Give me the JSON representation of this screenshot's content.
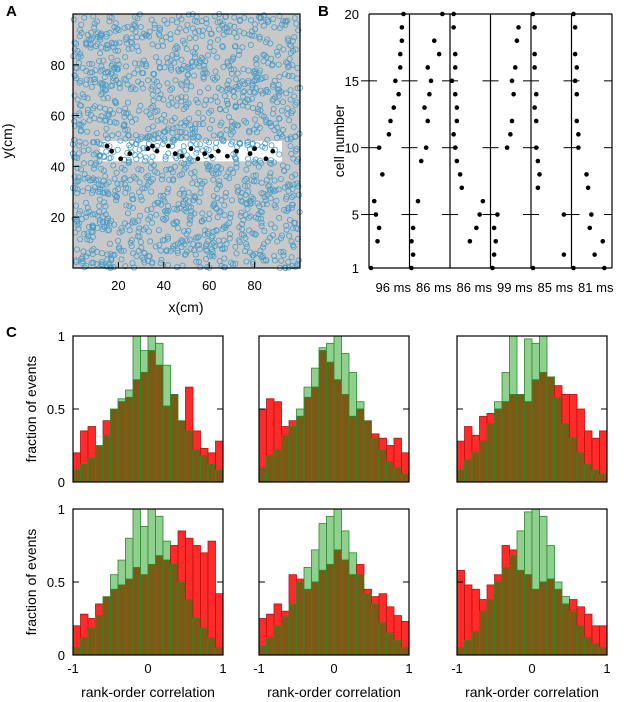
{
  "panel_labels": {
    "a": "A",
    "b": "B",
    "c": "C"
  },
  "colors": {
    "arena_bg": "#c8c8c8",
    "ring": "#4b9cc7",
    "spike": "#000000",
    "green_fill": "#8fd08f",
    "green_edge": "#2a8a2a",
    "red_fill": "#ff2a2a",
    "overlap": "#7a5a14"
  },
  "chart_data": [
    {
      "id": "A",
      "type": "scatter",
      "title": "",
      "xlabel": "x(cm)",
      "ylabel": "y(cm)",
      "xlim": [
        0,
        100
      ],
      "ylim": [
        0,
        100
      ],
      "xticks": [
        20,
        40,
        60,
        80
      ],
      "yticks": [
        20,
        40,
        60,
        80
      ],
      "track_y_range": [
        42,
        50
      ],
      "track_x_range": [
        12,
        92
      ],
      "active_cells": [
        {
          "x": 15,
          "y": 48
        },
        {
          "x": 17,
          "y": 46
        },
        {
          "x": 21,
          "y": 43
        },
        {
          "x": 25,
          "y": 45
        },
        {
          "x": 33,
          "y": 47
        },
        {
          "x": 35,
          "y": 48
        },
        {
          "x": 37,
          "y": 46
        },
        {
          "x": 42,
          "y": 48
        },
        {
          "x": 45,
          "y": 45
        },
        {
          "x": 48,
          "y": 44
        },
        {
          "x": 52,
          "y": 47
        },
        {
          "x": 55,
          "y": 43
        },
        {
          "x": 58,
          "y": 45
        },
        {
          "x": 61,
          "y": 44
        },
        {
          "x": 64,
          "y": 46
        },
        {
          "x": 68,
          "y": 44
        },
        {
          "x": 72,
          "y": 46
        },
        {
          "x": 78,
          "y": 45
        },
        {
          "x": 80,
          "y": 47
        },
        {
          "x": 85,
          "y": 43
        },
        {
          "x": 88,
          "y": 46
        }
      ]
    },
    {
      "id": "B",
      "type": "scatter",
      "ylabel": "cell number",
      "yticks": [
        1,
        5,
        10,
        15,
        20
      ],
      "ylim": [
        1,
        20
      ],
      "events": [
        {
          "label": "96 ms",
          "points": [
            [
              0.0,
              1
            ],
            [
              0.2,
              3
            ],
            [
              0.25,
              4
            ],
            [
              0.15,
              5
            ],
            [
              0.1,
              6
            ],
            [
              0.35,
              8
            ],
            [
              0.25,
              10
            ],
            [
              0.55,
              11
            ],
            [
              0.6,
              12
            ],
            [
              0.7,
              13
            ],
            [
              0.85,
              14
            ],
            [
              0.75,
              15
            ],
            [
              0.9,
              16
            ],
            [
              0.9,
              17
            ],
            [
              0.95,
              18
            ],
            [
              0.95,
              19
            ],
            [
              1.0,
              20
            ]
          ]
        },
        {
          "label": "86 ms",
          "points": [
            [
              0.0,
              1
            ],
            [
              0.05,
              2
            ],
            [
              0.0,
              3
            ],
            [
              0.05,
              4
            ],
            [
              0.2,
              6
            ],
            [
              0.3,
              9
            ],
            [
              0.45,
              10
            ],
            [
              0.5,
              12
            ],
            [
              0.4,
              13
            ],
            [
              0.55,
              14
            ],
            [
              0.6,
              15
            ],
            [
              0.5,
              16
            ],
            [
              0.85,
              17
            ],
            [
              0.7,
              18
            ],
            [
              0.95,
              20
            ]
          ]
        },
        {
          "label": "86 ms",
          "points": [
            [
              0.0,
              15
            ],
            [
              0.05,
              20
            ],
            [
              0.05,
              19
            ],
            [
              0.1,
              17
            ],
            [
              0.1,
              16
            ],
            [
              0.1,
              14
            ],
            [
              0.15,
              13
            ],
            [
              0.15,
              12
            ],
            [
              0.05,
              11
            ],
            [
              0.1,
              10
            ],
            [
              0.15,
              9
            ],
            [
              0.25,
              8
            ],
            [
              0.3,
              7
            ],
            [
              0.55,
              3
            ],
            [
              0.75,
              4
            ],
            [
              0.85,
              5
            ],
            [
              0.95,
              6
            ]
          ]
        },
        {
          "label": "99 ms",
          "points": [
            [
              0.0,
              1
            ],
            [
              0.05,
              2
            ],
            [
              0.1,
              3
            ],
            [
              0.05,
              4
            ],
            [
              0.15,
              5
            ],
            [
              0.45,
              10
            ],
            [
              0.55,
              11
            ],
            [
              0.6,
              12
            ],
            [
              0.65,
              14
            ],
            [
              0.6,
              15
            ],
            [
              0.7,
              16
            ],
            [
              0.75,
              18
            ],
            [
              0.8,
              19
            ]
          ]
        },
        {
          "label": "85 ms",
          "points": [
            [
              0.0,
              1
            ],
            [
              0.0,
              20
            ],
            [
              0.05,
              19
            ],
            [
              0.05,
              17
            ],
            [
              0.05,
              16
            ],
            [
              0.1,
              14
            ],
            [
              0.05,
              13
            ],
            [
              0.1,
              12
            ],
            [
              0.1,
              10
            ],
            [
              0.15,
              9
            ],
            [
              0.2,
              8
            ],
            [
              0.15,
              7
            ],
            [
              0.95,
              2
            ],
            [
              0.95,
              5
            ]
          ]
        },
        {
          "label": "81 ms",
          "points": [
            [
              0.0,
              1
            ],
            [
              0.0,
              20
            ],
            [
              0.05,
              19
            ],
            [
              0.05,
              17
            ],
            [
              0.1,
              16
            ],
            [
              0.05,
              15
            ],
            [
              0.1,
              14
            ],
            [
              0.1,
              12
            ],
            [
              0.15,
              11
            ],
            [
              0.15,
              10
            ],
            [
              0.4,
              8
            ],
            [
              0.45,
              7
            ],
            [
              0.55,
              5
            ],
            [
              0.5,
              4
            ],
            [
              0.65,
              2
            ],
            [
              0.9,
              3
            ],
            [
              0.95,
              1
            ]
          ]
        }
      ]
    },
    {
      "id": "C",
      "type": "bar",
      "xlabel": "rank-order correlation",
      "ylabel": "fraction of events",
      "xlim": [
        -1,
        1
      ],
      "ylim": [
        0,
        1
      ],
      "xticks": [
        -1,
        0,
        1
      ],
      "yticks": [
        0,
        0.5,
        1
      ],
      "bin_edges_from": -1,
      "bin_width": 0.1,
      "panels": [
        {
          "red": [
            0.2,
            0.35,
            0.38,
            0.25,
            0.42,
            0.5,
            0.55,
            0.58,
            0.7,
            0.75,
            0.9,
            0.8,
            0.52,
            0.6,
            0.42,
            0.65,
            0.35,
            0.23,
            0.2,
            0.28
          ],
          "green": [
            0.08,
            0.12,
            0.16,
            0.25,
            0.32,
            0.5,
            0.57,
            0.63,
            1.0,
            0.9,
            1.0,
            0.95,
            0.8,
            0.6,
            0.42,
            0.35,
            0.22,
            0.18,
            0.12,
            0.08
          ]
        },
        {
          "red": [
            0.5,
            0.57,
            0.55,
            0.38,
            0.42,
            0.45,
            0.58,
            0.65,
            0.9,
            0.82,
            0.7,
            0.6,
            0.45,
            0.5,
            0.42,
            0.33,
            0.3,
            0.25,
            0.3,
            0.2
          ],
          "green": [
            0.1,
            0.18,
            0.22,
            0.32,
            0.38,
            0.5,
            0.65,
            0.78,
            0.92,
            0.95,
            1.0,
            0.88,
            0.75,
            0.55,
            0.42,
            0.3,
            0.22,
            0.14,
            0.1,
            0.05
          ]
        },
        {
          "red": [
            0.28,
            0.38,
            0.32,
            0.45,
            0.47,
            0.5,
            0.55,
            0.6,
            0.6,
            0.55,
            0.7,
            0.75,
            0.72,
            0.66,
            0.6,
            0.6,
            0.5,
            0.35,
            0.3,
            0.35
          ],
          "green": [
            0.08,
            0.15,
            0.2,
            0.28,
            0.4,
            0.55,
            0.75,
            1.0,
            0.6,
            0.98,
            0.95,
            1.0,
            0.72,
            0.58,
            0.4,
            0.3,
            0.2,
            0.12,
            0.08,
            0.05
          ]
        },
        {
          "red": [
            0.2,
            0.28,
            0.25,
            0.35,
            0.4,
            0.45,
            0.48,
            0.52,
            0.6,
            0.55,
            0.62,
            0.68,
            0.65,
            0.75,
            0.85,
            0.8,
            0.75,
            0.7,
            0.78,
            0.42
          ],
          "green": [
            0.05,
            0.12,
            0.18,
            0.27,
            0.4,
            0.55,
            0.65,
            0.8,
            1.0,
            0.88,
            1.0,
            0.95,
            0.78,
            0.62,
            0.5,
            0.38,
            0.25,
            0.18,
            0.12,
            0.05
          ]
        },
        {
          "red": [
            0.25,
            0.28,
            0.35,
            0.3,
            0.55,
            0.52,
            0.45,
            0.5,
            0.58,
            0.62,
            0.72,
            0.65,
            0.55,
            0.62,
            0.45,
            0.4,
            0.42,
            0.33,
            0.27,
            0.23
          ],
          "green": [
            0.06,
            0.12,
            0.2,
            0.26,
            0.35,
            0.5,
            0.6,
            0.72,
            0.9,
            0.95,
            1.0,
            0.85,
            0.7,
            0.55,
            0.42,
            0.35,
            0.22,
            0.15,
            0.1,
            0.05
          ]
        },
        {
          "red": [
            0.58,
            0.48,
            0.45,
            0.38,
            0.48,
            0.55,
            0.75,
            0.72,
            0.58,
            0.55,
            0.45,
            0.5,
            0.52,
            0.45,
            0.35,
            0.38,
            0.33,
            0.28,
            0.2,
            0.2
          ],
          "green": [
            0.05,
            0.1,
            0.16,
            0.3,
            0.38,
            0.5,
            0.6,
            0.68,
            0.85,
            0.98,
            1.0,
            0.95,
            0.75,
            0.5,
            0.4,
            0.3,
            0.2,
            0.12,
            0.08,
            0.05
          ]
        }
      ]
    }
  ]
}
